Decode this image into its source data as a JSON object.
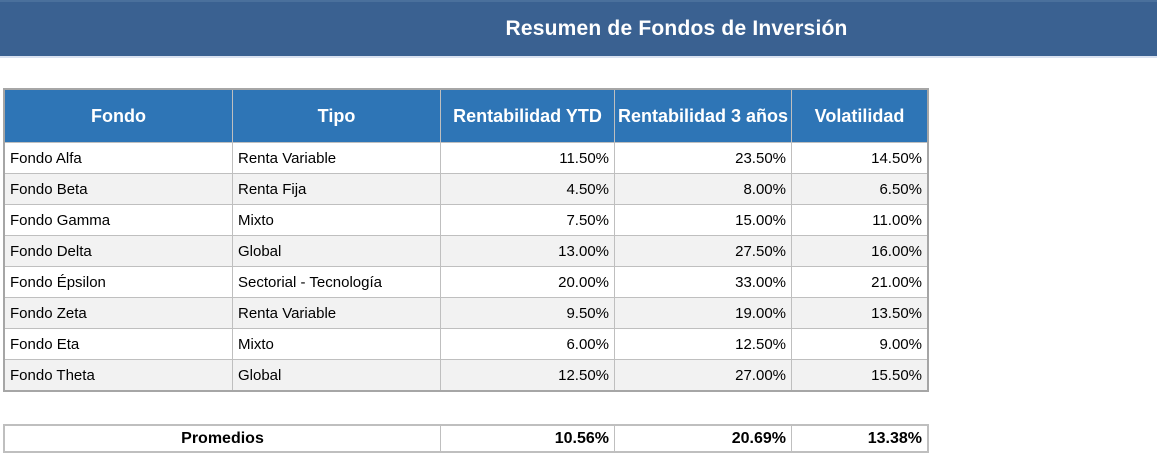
{
  "banner": {
    "title": "Resumen de Fondos de Inversión"
  },
  "colors": {
    "banner_bg": "#3A6191",
    "header_bg": "#2E75B6",
    "row_stripe": "#F2F2F2",
    "grid_line": "#BFBFBF",
    "outer_border": "#A6A6A6",
    "header_text": "#FFFFFF",
    "body_text": "#000000"
  },
  "table": {
    "headers": [
      "Fondo",
      "Tipo",
      "Rentabilidad YTD",
      "Rentabilidad 3 años",
      "Volatilidad"
    ],
    "rows": [
      {
        "fondo": "Fondo Alfa",
        "tipo": "Renta Variable",
        "ytd": "11.50%",
        "tres_anos": "23.50%",
        "volatilidad": "14.50%"
      },
      {
        "fondo": "Fondo Beta",
        "tipo": "Renta Fija",
        "ytd": "4.50%",
        "tres_anos": "8.00%",
        "volatilidad": "6.50%"
      },
      {
        "fondo": "Fondo Gamma",
        "tipo": "Mixto",
        "ytd": "7.50%",
        "tres_anos": "15.00%",
        "volatilidad": "11.00%"
      },
      {
        "fondo": "Fondo Delta",
        "tipo": "Global",
        "ytd": "13.00%",
        "tres_anos": "27.50%",
        "volatilidad": "16.00%"
      },
      {
        "fondo": "Fondo Épsilon",
        "tipo": "Sectorial - Tecnología",
        "ytd": "20.00%",
        "tres_anos": "33.00%",
        "volatilidad": "21.00%"
      },
      {
        "fondo": "Fondo Zeta",
        "tipo": "Renta Variable",
        "ytd": "9.50%",
        "tres_anos": "19.00%",
        "volatilidad": "13.50%"
      },
      {
        "fondo": "Fondo Eta",
        "tipo": "Mixto",
        "ytd": "6.00%",
        "tres_anos": "12.50%",
        "volatilidad": "9.00%"
      },
      {
        "fondo": "Fondo Theta",
        "tipo": "Global",
        "ytd": "12.50%",
        "tres_anos": "27.00%",
        "volatilidad": "15.50%"
      }
    ]
  },
  "summary": {
    "label": "Promedios",
    "ytd": "10.56%",
    "tres_anos": "20.69%",
    "volatilidad": "13.38%"
  }
}
